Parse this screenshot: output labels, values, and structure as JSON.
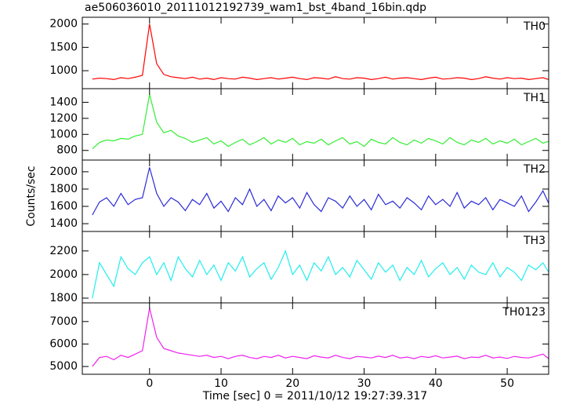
{
  "chart_data": {
    "type": "line",
    "title": "ae506036010_20111012192739_wam1_bst_4band_16bin.qdp",
    "x_label": "Time [sec] 0 = 2011/10/12 19:27:39.317",
    "y_label": "Counts/sec",
    "xlim": [
      -9.4,
      55.8
    ],
    "xticks": [
      0,
      10,
      20,
      30,
      40,
      50
    ],
    "x": [
      -8,
      -7,
      -6,
      -5,
      -4,
      -3,
      -2,
      -1,
      0,
      1,
      2,
      3,
      4,
      5,
      6,
      7,
      8,
      9,
      10,
      11,
      12,
      13,
      14,
      15,
      16,
      17,
      18,
      19,
      20,
      21,
      22,
      23,
      24,
      25,
      26,
      27,
      28,
      29,
      30,
      31,
      32,
      33,
      34,
      35,
      36,
      37,
      38,
      39,
      40,
      41,
      42,
      43,
      44,
      45,
      46,
      47,
      48,
      49,
      50,
      51,
      52,
      53,
      54,
      55,
      56
    ],
    "panels": [
      {
        "name": "TH0",
        "color": "#ff0000",
        "ylim": [
          615,
          2145
        ],
        "yticks": [
          1000,
          1500,
          2000
        ],
        "values": [
          820,
          840,
          830,
          810,
          850,
          830,
          860,
          900,
          2000,
          1150,
          920,
          870,
          850,
          830,
          860,
          820,
          840,
          810,
          850,
          830,
          820,
          860,
          840,
          810,
          830,
          850,
          820,
          840,
          860,
          830,
          810,
          850,
          840,
          820,
          870,
          830,
          820,
          850,
          840,
          810,
          830,
          860,
          820,
          840,
          850,
          830,
          810,
          840,
          860,
          820,
          830,
          850,
          840,
          810,
          830,
          870,
          840,
          820,
          850,
          830,
          840,
          810,
          830,
          850,
          800
        ]
      },
      {
        "name": "TH1",
        "color": "#33ee33",
        "ylim": [
          680,
          1570
        ],
        "yticks": [
          800,
          1000,
          1200,
          1400
        ],
        "values": [
          820,
          900,
          930,
          920,
          950,
          940,
          980,
          1000,
          1500,
          1150,
          1020,
          1050,
          980,
          950,
          900,
          930,
          960,
          880,
          920,
          850,
          900,
          940,
          870,
          910,
          960,
          880,
          930,
          900,
          950,
          870,
          910,
          890,
          940,
          870,
          920,
          960,
          880,
          910,
          850,
          940,
          900,
          880,
          960,
          900,
          870,
          930,
          890,
          950,
          920,
          880,
          960,
          900,
          870,
          930,
          900,
          950,
          880,
          920,
          890,
          940,
          870,
          910,
          950,
          890,
          920
        ]
      },
      {
        "name": "TH2",
        "color": "#2a2ad8",
        "ylim": [
          1310,
          2135
        ],
        "yticks": [
          1400,
          1600,
          1800,
          2000
        ],
        "values": [
          1500,
          1650,
          1700,
          1600,
          1750,
          1620,
          1680,
          1700,
          2050,
          1750,
          1600,
          1700,
          1650,
          1550,
          1680,
          1620,
          1750,
          1580,
          1660,
          1540,
          1700,
          1620,
          1800,
          1600,
          1680,
          1550,
          1720,
          1640,
          1700,
          1580,
          1760,
          1620,
          1540,
          1700,
          1660,
          1580,
          1720,
          1600,
          1680,
          1560,
          1740,
          1620,
          1660,
          1580,
          1700,
          1640,
          1560,
          1720,
          1620,
          1680,
          1600,
          1760,
          1580,
          1660,
          1620,
          1700,
          1560,
          1680,
          1640,
          1600,
          1720,
          1540,
          1650,
          1780,
          1600
        ]
      },
      {
        "name": "TH3",
        "color": "#22eeee",
        "ylim": [
          1760,
          2365
        ],
        "yticks": [
          1800,
          2000,
          2200
        ],
        "values": [
          1800,
          2100,
          2000,
          1900,
          2150,
          2050,
          2000,
          2100,
          2150,
          2000,
          2100,
          1950,
          2150,
          2050,
          1980,
          2120,
          2000,
          2080,
          1950,
          2100,
          2030,
          2150,
          1980,
          2050,
          2100,
          1960,
          2060,
          2200,
          2000,
          2080,
          1950,
          2100,
          2030,
          2150,
          2000,
          2060,
          1980,
          2120,
          2040,
          1960,
          2100,
          2020,
          2080,
          1950,
          2060,
          2000,
          2120,
          1980,
          2050,
          2100,
          2000,
          2060,
          1960,
          2080,
          2020,
          2000,
          2100,
          1980,
          2060,
          2020,
          1950,
          2080,
          2040,
          2100,
          2000
        ]
      },
      {
        "name": "TH0123",
        "color": "#ee22ee",
        "ylim": [
          4655,
          7830
        ],
        "yticks": [
          5000,
          6000,
          7000
        ],
        "values": [
          5000,
          5400,
          5450,
          5300,
          5500,
          5400,
          5550,
          5700,
          7600,
          6300,
          5800,
          5700,
          5600,
          5550,
          5500,
          5450,
          5500,
          5400,
          5450,
          5350,
          5450,
          5500,
          5400,
          5350,
          5450,
          5400,
          5500,
          5380,
          5450,
          5400,
          5350,
          5480,
          5420,
          5380,
          5500,
          5400,
          5350,
          5450,
          5420,
          5380,
          5460,
          5400,
          5500,
          5380,
          5420,
          5350,
          5450,
          5400,
          5480,
          5380,
          5420,
          5460,
          5350,
          5420,
          5400,
          5500,
          5380,
          5420,
          5360,
          5450,
          5400,
          5380,
          5460,
          5550,
          5300
        ]
      }
    ]
  }
}
